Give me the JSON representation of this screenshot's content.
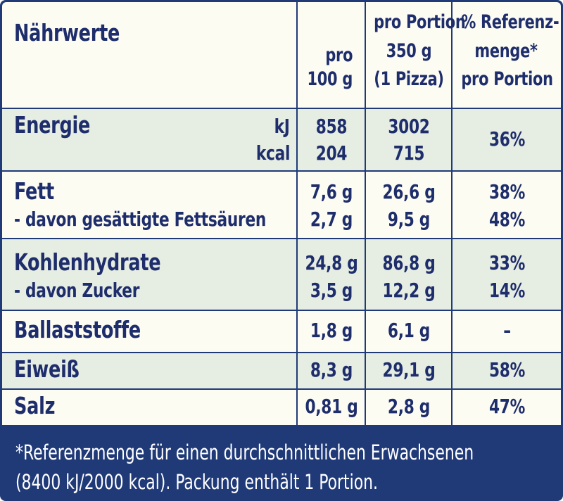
{
  "header": {
    "title": "Nährwerte",
    "col_100g": [
      "pro",
      "100 g"
    ],
    "col_portion": [
      "pro Portion",
      "350 g",
      "(1 Pizza)"
    ],
    "col_ref": [
      "% Referenz-",
      "menge*",
      "pro Portion"
    ]
  },
  "rows": {
    "energie": {
      "label": "Energie",
      "unit_kj": "kJ",
      "unit_kcal": "kcal",
      "per100_kj": "858",
      "per100_kcal": "204",
      "portion_kj": "3002",
      "portion_kcal": "715",
      "ref": "36%"
    },
    "fett": {
      "label": "Fett",
      "per100": "7,6 g",
      "portion": "26,6 g",
      "ref": "38%",
      "sub_label": "- davon gesättigte Fettsäuren",
      "sub_per100": "2,7 g",
      "sub_portion": "9,5 g",
      "sub_ref": "48%"
    },
    "kohlenhydrate": {
      "label": "Kohlenhydrate",
      "per100": "24,8 g",
      "portion": "86,8 g",
      "ref": "33%",
      "sub_label": "- davon Zucker",
      "sub_per100": "3,5 g",
      "sub_portion": "12,2 g",
      "sub_ref": "14%"
    },
    "ballaststoffe": {
      "label": "Ballaststoffe",
      "per100": "1,8 g",
      "portion": "6,1 g",
      "ref": "–"
    },
    "eiweiss": {
      "label": "Eiweiß",
      "per100": "8,3 g",
      "portion": "29,1 g",
      "ref": "58%"
    },
    "salz": {
      "label": "Salz",
      "per100": "0,81 g",
      "portion": "2,8 g",
      "ref": "47%"
    }
  },
  "footnote": [
    "*Referenzmenge für einen durchschnittlichen Erwachsenen",
    "(8400 kJ/2000 kcal). Packung enthält 1 Portion."
  ],
  "colors": {
    "navy": "#203a78",
    "cream": "#fcfcf2",
    "shade": "#e6ede2",
    "text": "#1e2d6b"
  }
}
